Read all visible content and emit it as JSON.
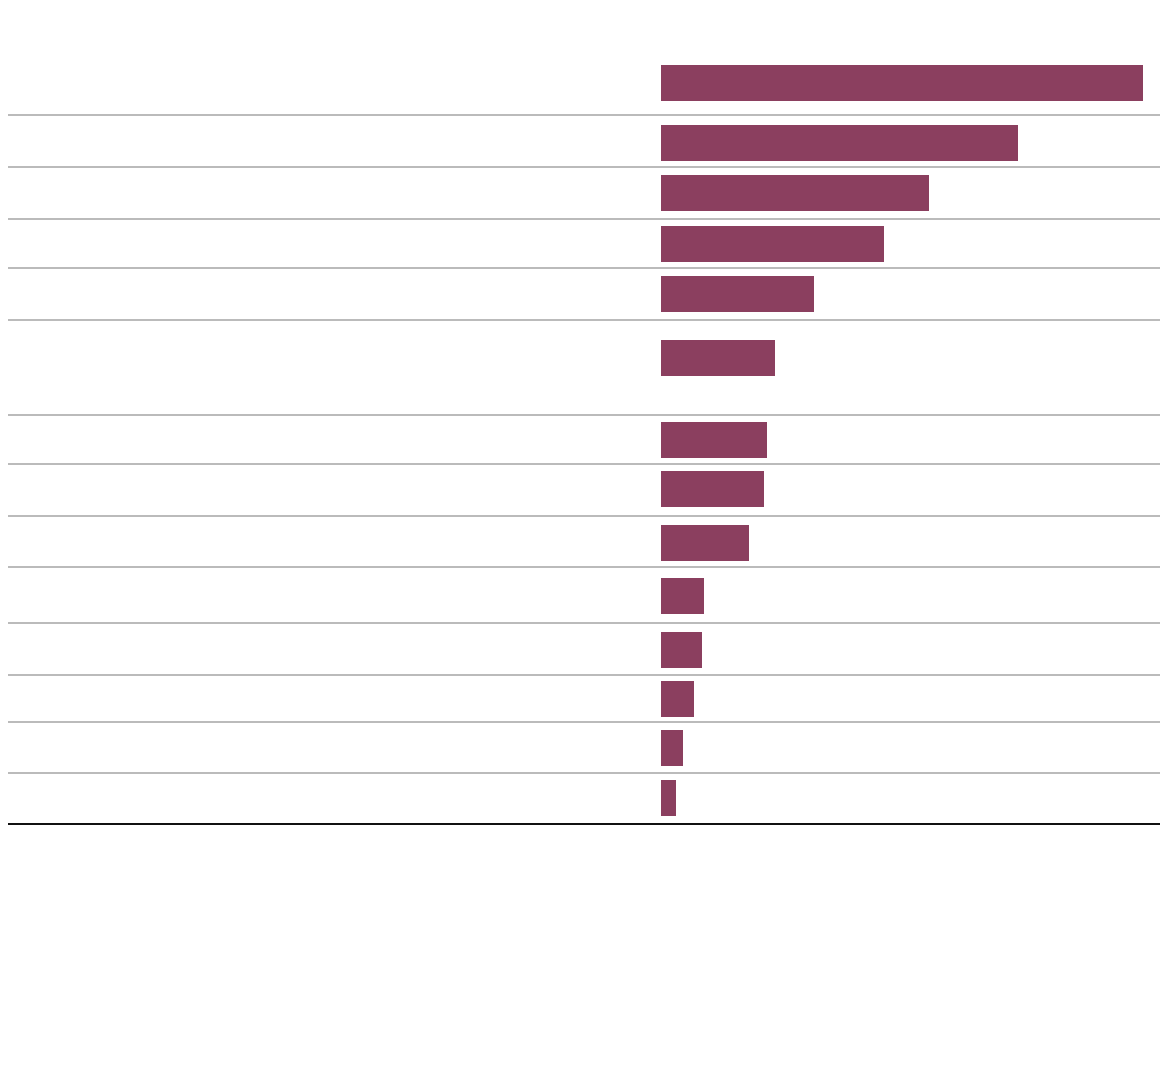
{
  "chart_data": {
    "type": "hbar",
    "categories": [
      null,
      null,
      null,
      null,
      null,
      null,
      null,
      null,
      null,
      null,
      null,
      null,
      null,
      null
    ],
    "values": [
      482,
      357,
      268,
      223,
      153,
      114,
      106,
      103,
      88,
      43,
      41,
      33,
      22,
      15
    ],
    "color": "#8b3f5f",
    "xlim": [
      0,
      499
    ]
  }
}
